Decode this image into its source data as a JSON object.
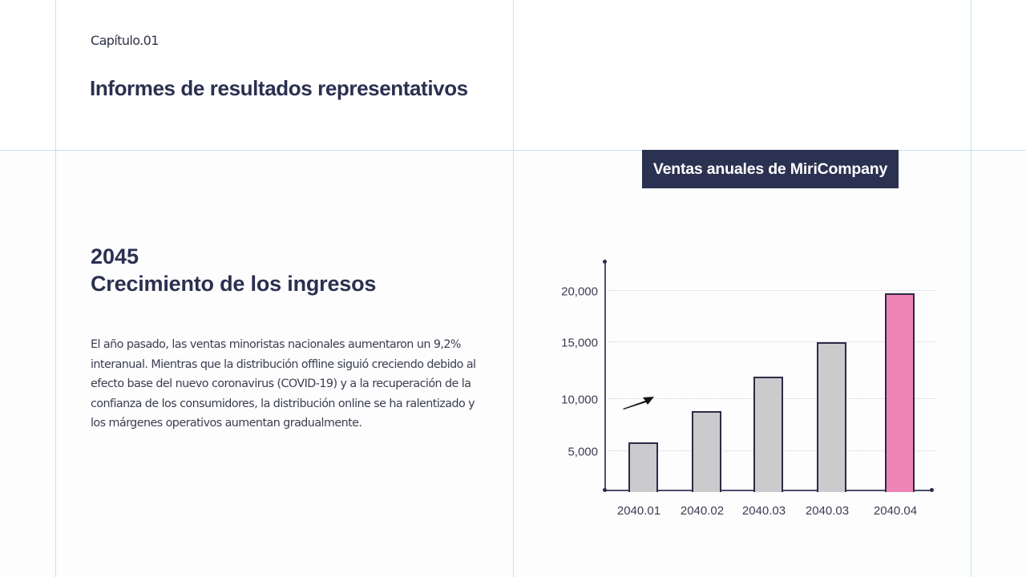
{
  "header": {
    "chapter": "Capítulo.01",
    "title": "Informes de resultados representativos"
  },
  "section": {
    "year": "2045",
    "title": "Crecimiento de los ingresos",
    "body": "El año pasado, las ventas minoristas nacionales aumentaron un 9,2% interanual. Mientras que la distribución offline siguió creciendo debido al efecto base del nuevo coronavirus (COVID-19) y a la recuperación de la confianza de los consumidores, la distribución online se ha ralentizado y los márgenes operativos aumentan gradualmente."
  },
  "colors": {
    "bar_default": "#cbcbcd",
    "bar_highlight": "#ee84b6",
    "bar_border": "#2b2a45",
    "title_bg": "#2b3150",
    "guide": "#bfe3f7"
  },
  "chart_data": {
    "type": "bar",
    "title": "Ventas anuales de MiriCompany",
    "xlabel": "",
    "ylabel": "",
    "categories": [
      "2040.01",
      "2040.02",
      "2040.03",
      "2040.03",
      "2040.04"
    ],
    "values": [
      5800,
      8800,
      11900,
      14900,
      19700
    ],
    "highlight_index": 4,
    "yticks": [
      5000,
      10000,
      15000,
      20000
    ],
    "ytick_labels": [
      "5,000",
      "10,000",
      "15,000",
      "20,000"
    ],
    "ylim": [
      0,
      22500
    ],
    "grid": true,
    "grid_style": "dotted horizontal",
    "legend": null,
    "annotations": [
      "upward trend arrow"
    ]
  }
}
